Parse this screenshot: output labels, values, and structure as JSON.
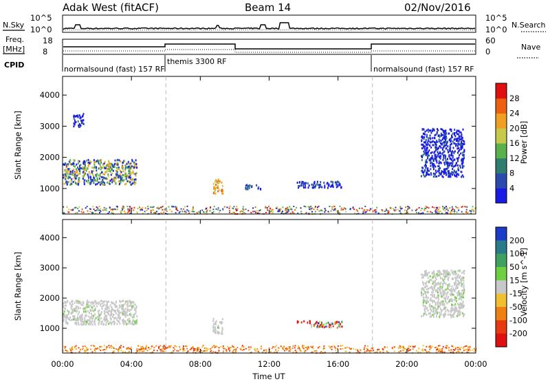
{
  "header": {
    "radar": "Adak West (fitACF)",
    "beam": "Beam 14",
    "date": "02/Nov/2016"
  },
  "summary": {
    "nsky_label": "N.Sky",
    "nsky_ticks": [
      "10^5",
      "10^0"
    ],
    "nsearch_label": "N.Search",
    "nsearch_ticks": [
      "10^5",
      "10^0"
    ],
    "freq_label": "Freq.",
    "freq_unit": "[MHz]",
    "freq_ticks": [
      "18",
      "8"
    ],
    "nave_label": "Nave",
    "nave_ticks": [
      "60",
      "0"
    ],
    "cpid_label": "CPID",
    "cpid_segments": [
      {
        "start_hour": 0,
        "label": "normalsound (fast)  157 RF"
      },
      {
        "start_hour": 6,
        "label": "themis  3300 RF"
      },
      {
        "start_hour": 18,
        "label": "normalsound (fast)  157 RF"
      }
    ]
  },
  "chart_data": [
    {
      "type": "heatmap",
      "title": "",
      "xlabel": "",
      "ylabel": "Slant Range [km]",
      "xlim_hours": [
        0,
        24
      ],
      "ylim": [
        180,
        4600
      ],
      "yticks": [
        1000,
        2000,
        3000,
        4000
      ],
      "colorbar": {
        "label": "Power [dB]",
        "ticks": [
          "4",
          "8",
          "12",
          "16",
          "20",
          "24",
          "28"
        ],
        "colors": [
          "#1a1ae6",
          "#2a4ab0",
          "#2e7d6e",
          "#5ab04a",
          "#c6c94a",
          "#f0a020",
          "#ee6010",
          "#e01010"
        ]
      },
      "regions": [
        {
          "t0": 0.0,
          "t1": 4.3,
          "r0": 1150,
          "r1": 1950,
          "level": "mixed"
        },
        {
          "t0": 0.6,
          "t1": 1.2,
          "r0": 3000,
          "r1": 3450,
          "level": "low"
        },
        {
          "t0": 8.7,
          "t1": 9.3,
          "r0": 850,
          "r1": 1350,
          "level": "high"
        },
        {
          "t0": 10.6,
          "t1": 11.5,
          "r0": 1000,
          "r1": 1150,
          "level": "low"
        },
        {
          "t0": 13.6,
          "t1": 16.2,
          "r0": 1050,
          "r1": 1250,
          "level": "low"
        },
        {
          "t0": 20.8,
          "t1": 23.3,
          "r0": 1400,
          "r1": 2950,
          "level": "low"
        },
        {
          "t0": 0.0,
          "t1": 24.0,
          "r0": 200,
          "r1": 450,
          "level": "ground"
        }
      ]
    },
    {
      "type": "heatmap",
      "title": "",
      "xlabel": "Time UT",
      "ylabel": "Slant Range [km]",
      "xlim_hours": [
        0,
        24
      ],
      "ylim": [
        180,
        4600
      ],
      "yticks": [
        1000,
        2000,
        3000,
        4000
      ],
      "xticks": [
        "00:00",
        "04:00",
        "08:00",
        "12:00",
        "16:00",
        "20:00",
        "00:00"
      ],
      "colorbar": {
        "label": "Velocity [m s^-1]",
        "ticks": [
          "200",
          "100",
          "50",
          "15",
          "-15",
          "-50",
          "-100",
          "-200"
        ],
        "colors": [
          "#1a3cc8",
          "#2a7a8a",
          "#40a060",
          "#6ed040",
          "#c8c8c8",
          "#f0c030",
          "#f08010",
          "#e83a10",
          "#e01010"
        ]
      },
      "regions": [
        {
          "t0": 0.0,
          "t1": 4.3,
          "r0": 1150,
          "r1": 1950,
          "level": "gray"
        },
        {
          "t0": 8.7,
          "t1": 9.3,
          "r0": 850,
          "r1": 1350,
          "level": "gray"
        },
        {
          "t0": 13.6,
          "t1": 14.4,
          "r0": 1200,
          "r1": 1280,
          "level": "negative"
        },
        {
          "t0": 14.4,
          "t1": 16.2,
          "r0": 1050,
          "r1": 1250,
          "level": "mixed"
        },
        {
          "t0": 20.8,
          "t1": 23.3,
          "r0": 1400,
          "r1": 2950,
          "level": "gray"
        },
        {
          "t0": 0.0,
          "t1": 24.0,
          "r0": 200,
          "r1": 450,
          "level": "ground"
        }
      ]
    }
  ]
}
